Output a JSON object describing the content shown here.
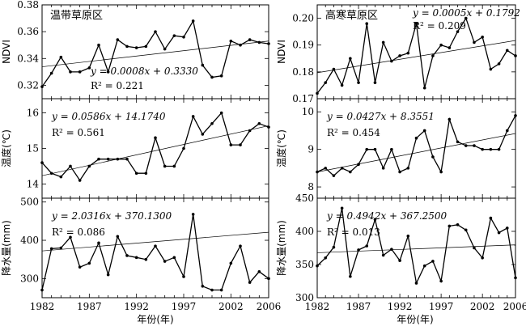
{
  "figure": {
    "columns": [
      {
        "region": "温带草原区"
      },
      {
        "region": "高寒草原区"
      }
    ],
    "x_axis_label": "年份(年)",
    "x_ticks": [
      1982,
      1987,
      1992,
      1997,
      2002,
      2006
    ]
  },
  "chart_data": [
    {
      "type": "line",
      "panel": "temperate-ndvi",
      "region_label": "温带草原区",
      "ylabel": "NDVI",
      "ylim": [
        0.31,
        0.38
      ],
      "yticks": [
        0.32,
        0.34,
        0.36,
        0.38
      ],
      "ytick_labels": [
        "0.32",
        "0.34",
        "0.36",
        "0.38"
      ],
      "x": [
        1982,
        1983,
        1984,
        1985,
        1986,
        1987,
        1988,
        1989,
        1990,
        1991,
        1992,
        1993,
        1994,
        1995,
        1996,
        1997,
        1998,
        1999,
        2000,
        2001,
        2002,
        2003,
        2004,
        2005,
        2006
      ],
      "values": [
        0.319,
        0.329,
        0.341,
        0.33,
        0.33,
        0.333,
        0.35,
        0.33,
        0.354,
        0.349,
        0.348,
        0.349,
        0.36,
        0.347,
        0.357,
        0.356,
        0.368,
        0.335,
        0.326,
        0.327,
        0.353,
        0.35,
        0.354,
        0.352,
        0.351
      ],
      "trend": {
        "slope": 0.0008,
        "intercept": 0.333
      },
      "annotation": {
        "equation": "y = 0.0008x + 0.3330",
        "r2_text": "R² = 0.221",
        "position": "bottom-left"
      },
      "show_xtick_labels": false
    },
    {
      "type": "line",
      "panel": "alpine-ndvi",
      "region_label": "高寒草原区",
      "ylabel": "NDVI",
      "ylim": [
        0.17,
        0.205
      ],
      "yticks": [
        0.17,
        0.18,
        0.19,
        0.2
      ],
      "ytick_labels": [
        "0.17",
        "0.18",
        "0.19",
        "0.20"
      ],
      "x": [
        1982,
        1983,
        1984,
        1985,
        1986,
        1987,
        1988,
        1989,
        1990,
        1991,
        1992,
        1993,
        1994,
        1995,
        1996,
        1997,
        1998,
        1999,
        2000,
        2001,
        2002,
        2003,
        2004,
        2005,
        2006
      ],
      "values": [
        0.172,
        0.176,
        0.181,
        0.175,
        0.185,
        0.176,
        0.198,
        0.176,
        0.191,
        0.184,
        0.186,
        0.187,
        0.198,
        0.174,
        0.186,
        0.19,
        0.189,
        0.195,
        0.2,
        0.191,
        0.193,
        0.181,
        0.183,
        0.188,
        0.186
      ],
      "trend": {
        "slope": 0.0005,
        "intercept": 0.1792
      },
      "annotation": {
        "equation": "y = 0.0005x + 0.1792",
        "r2_text": "R² = 0.209",
        "position": "top-right"
      },
      "show_xtick_labels": false
    },
    {
      "type": "line",
      "panel": "temperate-temperature",
      "ylabel": "温度(℃)",
      "ylim": [
        13.6,
        16.4
      ],
      "yticks": [
        14,
        15,
        16
      ],
      "ytick_labels": [
        "14",
        "15",
        "16"
      ],
      "x": [
        1982,
        1983,
        1984,
        1985,
        1986,
        1987,
        1988,
        1989,
        1990,
        1991,
        1992,
        1993,
        1994,
        1995,
        1996,
        1997,
        1998,
        1999,
        2000,
        2001,
        2002,
        2003,
        2004,
        2005,
        2006
      ],
      "values": [
        14.6,
        14.3,
        14.2,
        14.5,
        14.1,
        14.5,
        14.7,
        14.7,
        14.7,
        14.7,
        14.3,
        14.3,
        15.3,
        14.5,
        14.5,
        15.0,
        15.9,
        15.4,
        15.7,
        16.0,
        15.1,
        15.1,
        15.5,
        15.7,
        15.6
      ],
      "trend": {
        "slope": 0.0586,
        "intercept": 14.174
      },
      "annotation": {
        "equation": "y = 0.0586x + 14.1740",
        "r2_text": "R² = 0.561",
        "position": "top-left"
      },
      "show_xtick_labels": false
    },
    {
      "type": "line",
      "panel": "alpine-temperature",
      "ylabel": "温度(℃)",
      "ylim": [
        7.7,
        10.35
      ],
      "yticks": [
        8,
        9,
        10
      ],
      "ytick_labels": [
        "8",
        "9",
        "10"
      ],
      "x": [
        1982,
        1983,
        1984,
        1985,
        1986,
        1987,
        1988,
        1989,
        1990,
        1991,
        1992,
        1993,
        1994,
        1995,
        1996,
        1997,
        1998,
        1999,
        2000,
        2001,
        2002,
        2003,
        2004,
        2005,
        2006
      ],
      "values": [
        8.4,
        8.5,
        8.3,
        8.5,
        8.4,
        8.6,
        9.0,
        9.0,
        8.5,
        9.0,
        8.4,
        8.5,
        9.3,
        9.5,
        8.8,
        8.4,
        9.8,
        9.2,
        9.1,
        9.1,
        9.0,
        9.0,
        9.0,
        9.5,
        9.9
      ],
      "trend": {
        "slope": 0.0427,
        "intercept": 8.3551
      },
      "annotation": {
        "equation": "y = 0.0427x + 8.3551",
        "r2_text": "R² = 0.454",
        "position": "top-left"
      },
      "show_xtick_labels": false
    },
    {
      "type": "line",
      "panel": "temperate-precipitation",
      "ylabel": "降水量(mm)",
      "ylim": [
        250,
        510
      ],
      "yticks": [
        300,
        400,
        500
      ],
      "ytick_labels": [
        "300",
        "400",
        "500"
      ],
      "x": [
        1982,
        1983,
        1984,
        1985,
        1986,
        1987,
        1988,
        1989,
        1990,
        1991,
        1992,
        1993,
        1994,
        1995,
        1996,
        1997,
        1998,
        1999,
        2000,
        2001,
        2002,
        2003,
        2004,
        2005,
        2006
      ],
      "values": [
        270,
        378,
        380,
        408,
        330,
        340,
        393,
        310,
        410,
        360,
        355,
        350,
        385,
        345,
        355,
        305,
        468,
        280,
        270,
        270,
        340,
        385,
        290,
        318,
        300
      ],
      "trend": {
        "slope": 2.0316,
        "intercept": 370.13
      },
      "annotation": {
        "equation": "y = 2.0316x + 370.1300",
        "r2_text": "R² = 0.086",
        "position": "top-left"
      },
      "show_xtick_labels": true
    },
    {
      "type": "line",
      "panel": "alpine-precipitation",
      "ylabel": "降水量(mm)",
      "ylim": [
        300,
        450
      ],
      "yticks": [
        300,
        350,
        400,
        450
      ],
      "ytick_labels": [
        "300",
        "350",
        "400",
        "450"
      ],
      "x": [
        1982,
        1983,
        1984,
        1985,
        1986,
        1987,
        1988,
        1989,
        1990,
        1991,
        1992,
        1993,
        1994,
        1995,
        1996,
        1997,
        1998,
        1999,
        2000,
        2001,
        2002,
        2003,
        2004,
        2005,
        2006
      ],
      "values": [
        348,
        360,
        376,
        435,
        332,
        372,
        378,
        418,
        364,
        373,
        356,
        393,
        322,
        348,
        355,
        325,
        408,
        410,
        402,
        375,
        360,
        420,
        398,
        405,
        330
      ],
      "trend": {
        "slope": 0.4942,
        "intercept": 367.25
      },
      "annotation": {
        "equation": "y = 0.4942x + 367.2500",
        "r2_text": "R² = 0.013",
        "position": "top-left"
      },
      "show_xtick_labels": true
    }
  ]
}
